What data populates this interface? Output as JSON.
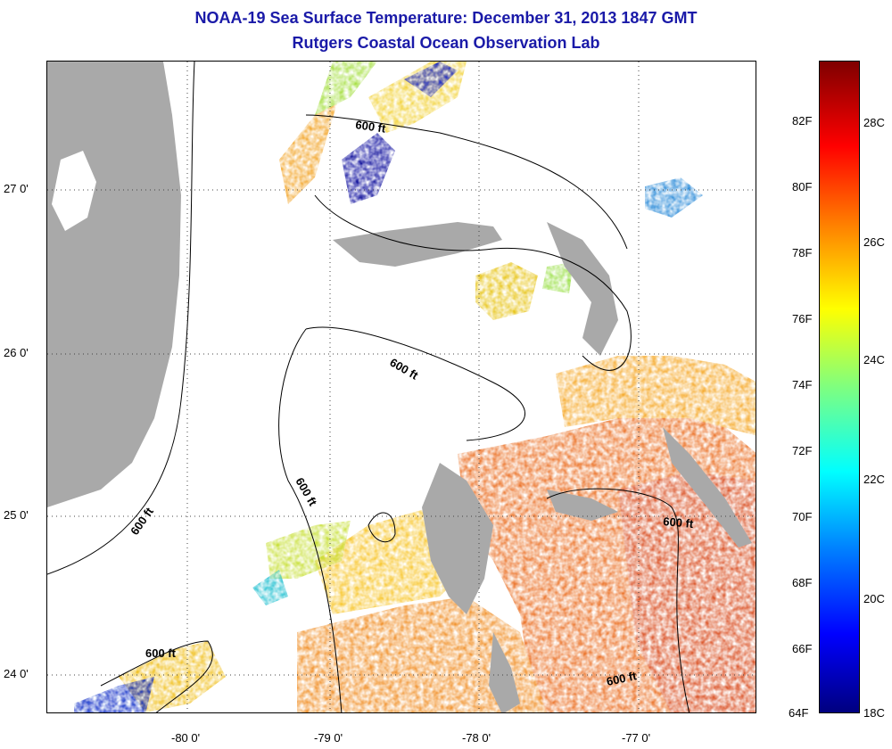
{
  "title": "NOAA-19 Sea Surface Temperature:  December 31, 2013 1847 GMT",
  "subtitle": "Rutgers Coastal Ocean Observation Lab",
  "longitude_ticks": [
    "-80 0'",
    "-79 0'",
    "-78 0'",
    "-77 0'"
  ],
  "latitude_ticks": [
    "27 0'",
    "26 0'",
    "25 0'",
    "24 0'"
  ],
  "contour_label": "600 ft",
  "colorbar": {
    "fahrenheit_ticks": [
      "64F",
      "66F",
      "68F",
      "70F",
      "72F",
      "74F",
      "76F",
      "78F",
      "80F",
      "82F"
    ],
    "celsius_ticks": [
      "18C",
      "20C",
      "22C",
      "24C",
      "26C",
      "28C"
    ]
  },
  "colors": {
    "title": "#1a1aa8",
    "land": "#a9a9a9",
    "cold": "#00008b",
    "warm": "#e8661a"
  }
}
